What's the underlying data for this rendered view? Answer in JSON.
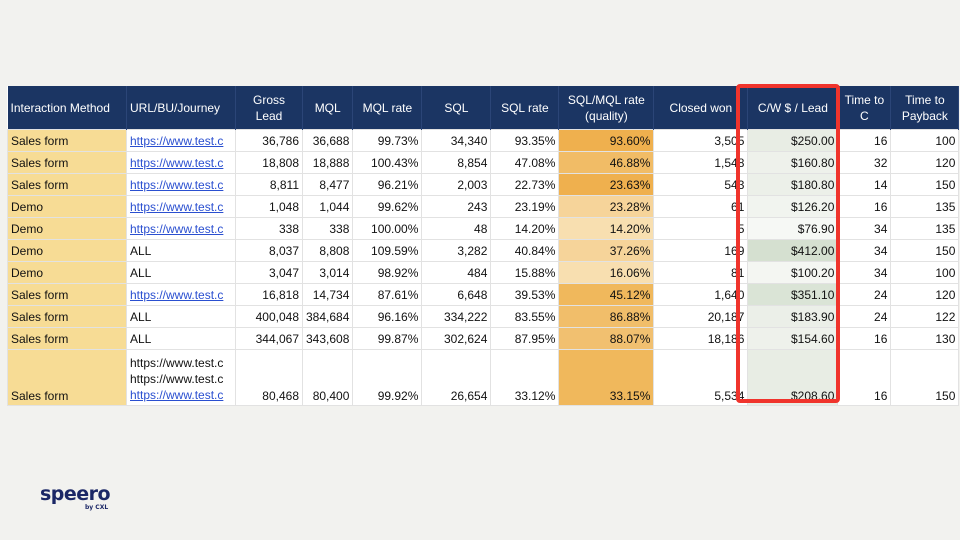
{
  "headers": [
    "Interaction Method",
    "URL/BU/Journey",
    "Gross Lead",
    "MQL",
    "MQL rate",
    "SQL",
    "SQL rate",
    "SQL/MQL rate (quality)",
    "Closed won",
    "C/W $ / Lead",
    "Time to C",
    "Time to Payback"
  ],
  "rows": [
    {
      "method": "Sales form",
      "url": "https://www.test.c",
      "link": true,
      "gross": "36,786",
      "mql": "36,688",
      "mql_rate": "99.73%",
      "sql": "34,340",
      "sql_rate": "93.35%",
      "quality": "93.60%",
      "quality_color": "#efb04e",
      "won": "3,505",
      "cw": "$250.00",
      "cw_color": "#e8ede4",
      "ttc": "16",
      "payback": "100"
    },
    {
      "method": "Sales form",
      "url": "https://www.test.c",
      "link": true,
      "gross": "18,808",
      "mql": "18,888",
      "mql_rate": "100.43%",
      "sql": "8,854",
      "sql_rate": "47.08%",
      "quality": "46.88%",
      "quality_color": "#f1bc66",
      "won": "1,548",
      "cw": "$160.80",
      "cw_color": "#eef1eb",
      "ttc": "32",
      "payback": "120"
    },
    {
      "method": "Sales form",
      "url": "https://www.test.c",
      "link": true,
      "gross": "8,811",
      "mql": "8,477",
      "mql_rate": "96.21%",
      "sql": "2,003",
      "sql_rate": "22.73%",
      "quality": "23.63%",
      "quality_color": "#efb04e",
      "won": "543",
      "cw": "$180.80",
      "cw_color": "#ecf0e9",
      "ttc": "14",
      "payback": "150"
    },
    {
      "method": "Demo",
      "url": "https://www.test.c",
      "link": true,
      "gross": "1,048",
      "mql": "1,044",
      "mql_rate": "99.62%",
      "sql": "243",
      "sql_rate": "23.19%",
      "quality": "23.28%",
      "quality_color": "#f6d49a",
      "won": "61",
      "cw": "$126.20",
      "cw_color": "#f1f4ef",
      "ttc": "16",
      "payback": "135"
    },
    {
      "method": "Demo",
      "url": "https://www.test.c",
      "link": true,
      "gross": "338",
      "mql": "338",
      "mql_rate": "100.00%",
      "sql": "48",
      "sql_rate": "14.20%",
      "quality": "14.20%",
      "quality_color": "#f8dfb0",
      "won": "5",
      "cw": "$76.90",
      "cw_color": "#f6f8f5",
      "ttc": "34",
      "payback": "135"
    },
    {
      "method": "Demo",
      "url": "ALL",
      "link": false,
      "gross": "8,037",
      "mql": "8,808",
      "mql_rate": "109.59%",
      "sql": "3,282",
      "sql_rate": "40.84%",
      "quality": "37.26%",
      "quality_color": "#f6d49a",
      "won": "169",
      "cw": "$412.00",
      "cw_color": "#d5e0d0",
      "ttc": "34",
      "payback": "150"
    },
    {
      "method": "Demo",
      "url": "ALL",
      "link": false,
      "gross": "3,047",
      "mql": "3,014",
      "mql_rate": "98.92%",
      "sql": "484",
      "sql_rate": "15.88%",
      "quality": "16.06%",
      "quality_color": "#f8dfb0",
      "won": "81",
      "cw": "$100.20",
      "cw_color": "#f4f6f2",
      "ttc": "34",
      "payback": "100"
    },
    {
      "method": "Sales form",
      "url": "https://www.test.c",
      "link": true,
      "gross": "16,818",
      "mql": "14,734",
      "mql_rate": "87.61%",
      "sql": "6,648",
      "sql_rate": "39.53%",
      "quality": "45.12%",
      "quality_color": "#f0b85c",
      "won": "1,640",
      "cw": "$351.10",
      "cw_color": "#dae4d6",
      "ttc": "24",
      "payback": "120"
    },
    {
      "method": "Sales form",
      "url": "ALL",
      "link": false,
      "gross": "400,048",
      "mql": "384,684",
      "mql_rate": "96.16%",
      "sql": "334,222",
      "sql_rate": "83.55%",
      "quality": "86.88%",
      "quality_color": "#f1be6a",
      "won": "20,187",
      "cw": "$183.90",
      "cw_color": "#ebefe8",
      "ttc": "24",
      "payback": "122"
    },
    {
      "method": "Sales form",
      "url": "ALL",
      "link": false,
      "gross": "344,067",
      "mql": "343,608",
      "mql_rate": "99.87%",
      "sql": "302,624",
      "sql_rate": "87.95%",
      "quality": "88.07%",
      "quality_color": "#f1c070",
      "won": "18,186",
      "cw": "$154.60",
      "cw_color": "#eef1eb",
      "ttc": "16",
      "payback": "130"
    }
  ],
  "last_row": {
    "method": "Sales form",
    "urls": [
      "https://www.test.c",
      "https://www.test.c",
      "https://www.test.c"
    ],
    "gross": "80,468",
    "mql": "80,400",
    "mql_rate": "99.92%",
    "sql": "26,654",
    "sql_rate": "33.12%",
    "quality": "33.15%",
    "quality_color": "#f0b85c",
    "won": "5,534",
    "cw": "$208.60",
    "cw_color": "#e8ede4",
    "ttc": "16",
    "payback": "150"
  },
  "highlight_color": "#f0342c",
  "logo": {
    "name": "speero",
    "sub": "by CXL"
  }
}
